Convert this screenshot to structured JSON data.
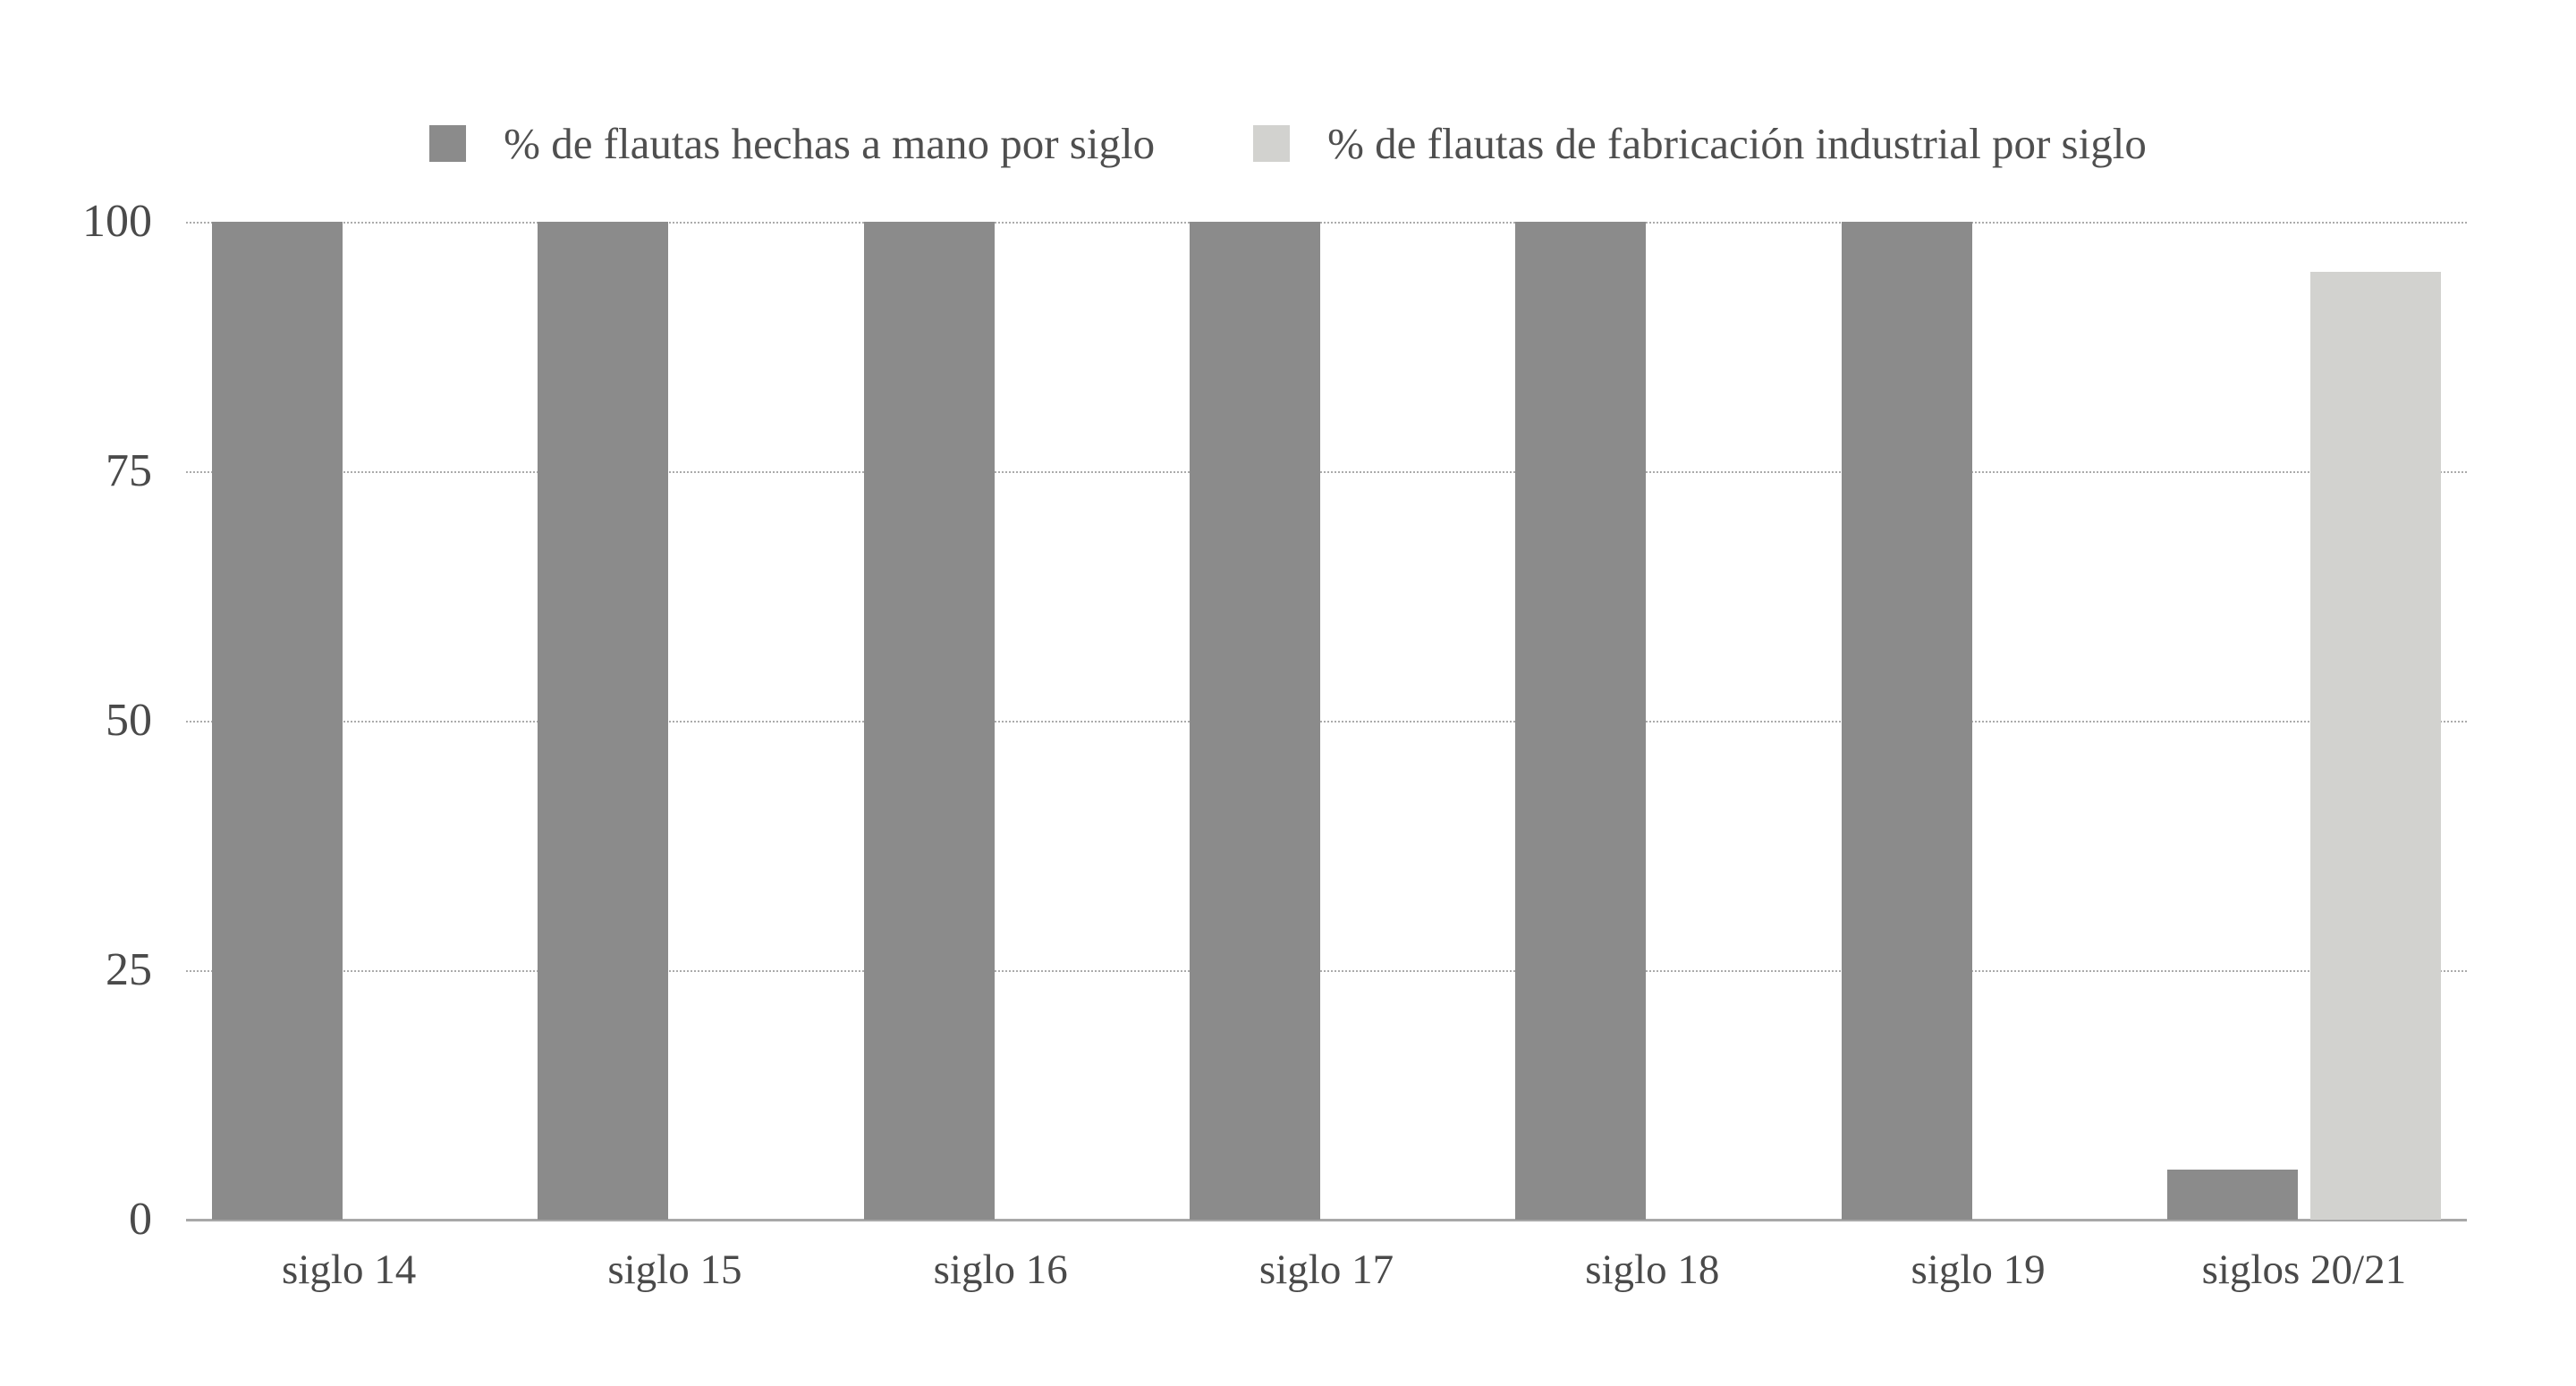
{
  "legend": {
    "items": [
      {
        "label": "% de flautas hechas a mano por siglo",
        "color": "#8b8b8b"
      },
      {
        "label": "% de flautas de fabricación industrial por siglo",
        "color": "#d2d2cf"
      }
    ]
  },
  "chart_data": {
    "type": "bar",
    "categories": [
      "siglo 14",
      "siglo 15",
      "siglo 16",
      "siglo 17",
      "siglo 18",
      "siglo 19",
      "siglos 20/21"
    ],
    "series": [
      {
        "name": "% de flautas hechas a mano por siglo",
        "color": "#8b8b8b",
        "values": [
          100,
          100,
          100,
          100,
          100,
          100,
          5
        ]
      },
      {
        "name": "% de flautas de fabricación industrial por siglo",
        "color": "#d2d2cf",
        "values": [
          0,
          0,
          0,
          0,
          0,
          0,
          95
        ]
      }
    ],
    "title": "",
    "xlabel": "",
    "ylabel": "",
    "ylim": [
      0,
      100
    ],
    "yticks": [
      0,
      25,
      50,
      75,
      100
    ],
    "grid": "horizontal-dotted",
    "legend_position": "top"
  },
  "colors": {
    "background": "#ffffff",
    "grid": "#ababab",
    "axis_line": "#a8a8a8",
    "tick_text": "#4a4a4a",
    "legend_text": "#4f4f4f"
  }
}
